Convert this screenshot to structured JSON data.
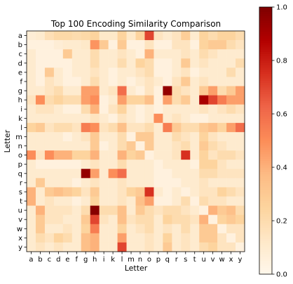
{
  "chart_data": {
    "type": "heatmap",
    "title": "Top 100 Encoding Similarity Comparison",
    "xlabel": "Letter",
    "ylabel": "Letter",
    "x_categories": [
      "a",
      "b",
      "c",
      "d",
      "e",
      "f",
      "g",
      "h",
      "i",
      "k",
      "l",
      "m",
      "n",
      "o",
      "p",
      "q",
      "r",
      "s",
      "t",
      "u",
      "v",
      "w",
      "x",
      "y"
    ],
    "y_categories": [
      "a",
      "b",
      "c",
      "d",
      "e",
      "f",
      "g",
      "h",
      "i",
      "k",
      "l",
      "m",
      "n",
      "o",
      "p",
      "q",
      "r",
      "s",
      "t",
      "u",
      "v",
      "w",
      "x",
      "y"
    ],
    "colorbar": {
      "colormap": "OrRd",
      "range": [
        0.0,
        1.0
      ],
      "ticks": [
        0.0,
        0.2,
        0.4,
        0.6,
        0.8,
        1.0
      ],
      "tick_labels": [
        "0.0",
        "0.2",
        "0.4",
        "0.6",
        "0.8",
        "1.0"
      ]
    },
    "values": [
      [
        0.08,
        0.1,
        0.18,
        0.22,
        0.22,
        0.2,
        0.22,
        0.25,
        0.12,
        0.12,
        0.25,
        0.12,
        0.25,
        0.7,
        0.15,
        0.1,
        0.15,
        0.28,
        0.1,
        0.25,
        0.2,
        0.25,
        0.25,
        0.2
      ],
      [
        0.05,
        0.05,
        0.05,
        0.08,
        0.1,
        0.1,
        0.12,
        0.48,
        0.3,
        0.05,
        0.3,
        0.05,
        0.05,
        0.15,
        0.05,
        0.05,
        0.15,
        0.15,
        0.05,
        0.25,
        0.3,
        0.3,
        0.2,
        0.15
      ],
      [
        0.1,
        0.05,
        0.05,
        0.05,
        0.3,
        0.1,
        0.1,
        0.2,
        0.1,
        0.1,
        0.15,
        0.1,
        0.05,
        0.4,
        0.1,
        0.1,
        0.1,
        0.15,
        0.1,
        0.2,
        0.15,
        0.1,
        0.1,
        0.1
      ],
      [
        0.1,
        0.05,
        0.05,
        0.05,
        0.05,
        0.1,
        0.1,
        0.2,
        0.1,
        0.1,
        0.2,
        0.1,
        0.25,
        0.2,
        0.05,
        0.05,
        0.1,
        0.3,
        0.1,
        0.15,
        0.1,
        0.1,
        0.1,
        0.2
      ],
      [
        0.1,
        0.05,
        0.3,
        0.1,
        0.05,
        0.1,
        0.1,
        0.15,
        0.1,
        0.05,
        0.1,
        0.1,
        0.15,
        0.2,
        0.05,
        0.05,
        0.1,
        0.15,
        0.05,
        0.1,
        0.1,
        0.1,
        0.2,
        0.1
      ],
      [
        0.1,
        0.05,
        0.15,
        0.1,
        0.05,
        0.05,
        0.1,
        0.2,
        0.1,
        0.05,
        0.1,
        0.05,
        0.1,
        0.15,
        0.1,
        0.05,
        0.15,
        0.3,
        0.1,
        0.15,
        0.1,
        0.1,
        0.1,
        0.1
      ],
      [
        0.1,
        0.1,
        0.15,
        0.2,
        0.1,
        0.1,
        0.45,
        0.45,
        0.1,
        0.15,
        0.6,
        0.1,
        0.05,
        0.15,
        0.05,
        0.95,
        0.2,
        0.15,
        0.1,
        0.3,
        0.45,
        0.2,
        0.3,
        0.45
      ],
      [
        0.15,
        0.5,
        0.2,
        0.25,
        0.2,
        0.2,
        0.45,
        0.5,
        0.05,
        0.1,
        0.45,
        0.25,
        0.25,
        0.35,
        0.05,
        0.45,
        0.2,
        0.3,
        0.1,
        0.9,
        0.7,
        0.55,
        0.45,
        0.45
      ],
      [
        0.1,
        0.15,
        0.15,
        0.1,
        0.05,
        0.05,
        0.2,
        0.4,
        0.05,
        0.15,
        0.25,
        0.1,
        0.05,
        0.1,
        0.05,
        0.1,
        0.1,
        0.1,
        0.1,
        0.15,
        0.1,
        0.15,
        0.2,
        0.15
      ],
      [
        0.1,
        0.1,
        0.1,
        0.1,
        0.1,
        0.1,
        0.1,
        0.15,
        0.1,
        0.05,
        0.15,
        0.1,
        0.05,
        0.1,
        0.5,
        0.1,
        0.15,
        0.1,
        0.05,
        0.05,
        0.1,
        0.1,
        0.1,
        0.1
      ],
      [
        0.25,
        0.3,
        0.15,
        0.2,
        0.2,
        0.15,
        0.55,
        0.5,
        0.15,
        0.2,
        0.35,
        0.15,
        0.15,
        0.2,
        0.1,
        0.55,
        0.3,
        0.2,
        0.2,
        0.3,
        0.35,
        0.25,
        0.45,
        0.6
      ],
      [
        0.1,
        0.1,
        0.1,
        0.1,
        0.05,
        0.1,
        0.15,
        0.3,
        0.1,
        0.1,
        0.2,
        0.05,
        0.3,
        0.3,
        0.1,
        0.1,
        0.2,
        0.15,
        0.1,
        0.25,
        0.15,
        0.1,
        0.1,
        0.1
      ],
      [
        0.1,
        0.1,
        0.1,
        0.1,
        0.1,
        0.1,
        0.1,
        0.3,
        0.05,
        0.1,
        0.2,
        0.3,
        0.05,
        0.3,
        0.1,
        0.1,
        0.15,
        0.2,
        0.1,
        0.3,
        0.2,
        0.15,
        0.1,
        0.1
      ],
      [
        0.5,
        0.15,
        0.5,
        0.4,
        0.4,
        0.25,
        0.25,
        0.4,
        0.1,
        0.1,
        0.4,
        0.25,
        0.3,
        0.05,
        0.1,
        0.1,
        0.15,
        0.75,
        0.1,
        0.25,
        0.15,
        0.2,
        0.2,
        0.15
      ],
      [
        0.1,
        0.05,
        0.05,
        0.05,
        0.05,
        0.05,
        0.1,
        0.15,
        0.1,
        0.1,
        0.2,
        0.1,
        0.1,
        0.1,
        0.05,
        0.1,
        0.1,
        0.1,
        0.05,
        0.25,
        0.25,
        0.15,
        0.1,
        0.1
      ],
      [
        0.1,
        0.1,
        0.1,
        0.1,
        0.1,
        0.1,
        0.95,
        0.45,
        0.1,
        0.5,
        0.6,
        0.1,
        0.1,
        0.1,
        0.05,
        0.05,
        0.1,
        0.1,
        0.1,
        0.2,
        0.2,
        0.15,
        0.15,
        0.15
      ],
      [
        0.1,
        0.3,
        0.1,
        0.1,
        0.1,
        0.05,
        0.1,
        0.15,
        0.1,
        0.1,
        0.15,
        0.1,
        0.1,
        0.1,
        0.05,
        0.05,
        0.05,
        0.1,
        0.1,
        0.15,
        0.1,
        0.1,
        0.1,
        0.1
      ],
      [
        0.4,
        0.1,
        0.3,
        0.35,
        0.3,
        0.25,
        0.15,
        0.3,
        0.1,
        0.1,
        0.15,
        0.25,
        0.3,
        0.75,
        0.1,
        0.05,
        0.1,
        0.05,
        0.1,
        0.15,
        0.15,
        0.25,
        0.2,
        0.15
      ],
      [
        0.4,
        0.1,
        0.15,
        0.1,
        0.1,
        0.05,
        0.1,
        0.25,
        0.1,
        0.1,
        0.15,
        0.1,
        0.35,
        0.45,
        0.05,
        0.05,
        0.1,
        0.2,
        0.05,
        0.2,
        0.15,
        0.15,
        0.1,
        0.1
      ],
      [
        0.1,
        0.4,
        0.15,
        0.15,
        0.15,
        0.1,
        0.2,
        0.98,
        0.2,
        0.2,
        0.35,
        0.1,
        0.3,
        0.2,
        0.15,
        0.2,
        0.2,
        0.15,
        0.1,
        0.05,
        0.4,
        0.3,
        0.35,
        0.2
      ],
      [
        0.1,
        0.3,
        0.15,
        0.15,
        0.1,
        0.1,
        0.3,
        0.7,
        0.15,
        0.1,
        0.35,
        0.15,
        0.2,
        0.2,
        0.1,
        0.25,
        0.2,
        0.2,
        0.15,
        0.4,
        0.05,
        0.25,
        0.3,
        0.25
      ],
      [
        0.1,
        0.3,
        0.1,
        0.1,
        0.15,
        0.1,
        0.25,
        0.55,
        0.1,
        0.1,
        0.25,
        0.1,
        0.15,
        0.2,
        0.1,
        0.15,
        0.1,
        0.2,
        0.1,
        0.3,
        0.3,
        0.05,
        0.15,
        0.15
      ],
      [
        0.1,
        0.2,
        0.15,
        0.25,
        0.2,
        0.1,
        0.35,
        0.4,
        0.1,
        0.1,
        0.45,
        0.1,
        0.1,
        0.15,
        0.1,
        0.25,
        0.1,
        0.15,
        0.1,
        0.3,
        0.3,
        0.15,
        0.05,
        0.15
      ],
      [
        0.1,
        0.15,
        0.1,
        0.15,
        0.1,
        0.1,
        0.35,
        0.4,
        0.1,
        0.1,
        0.7,
        0.1,
        0.1,
        0.15,
        0.1,
        0.3,
        0.1,
        0.15,
        0.1,
        0.2,
        0.25,
        0.15,
        0.15,
        0.05
      ]
    ]
  }
}
